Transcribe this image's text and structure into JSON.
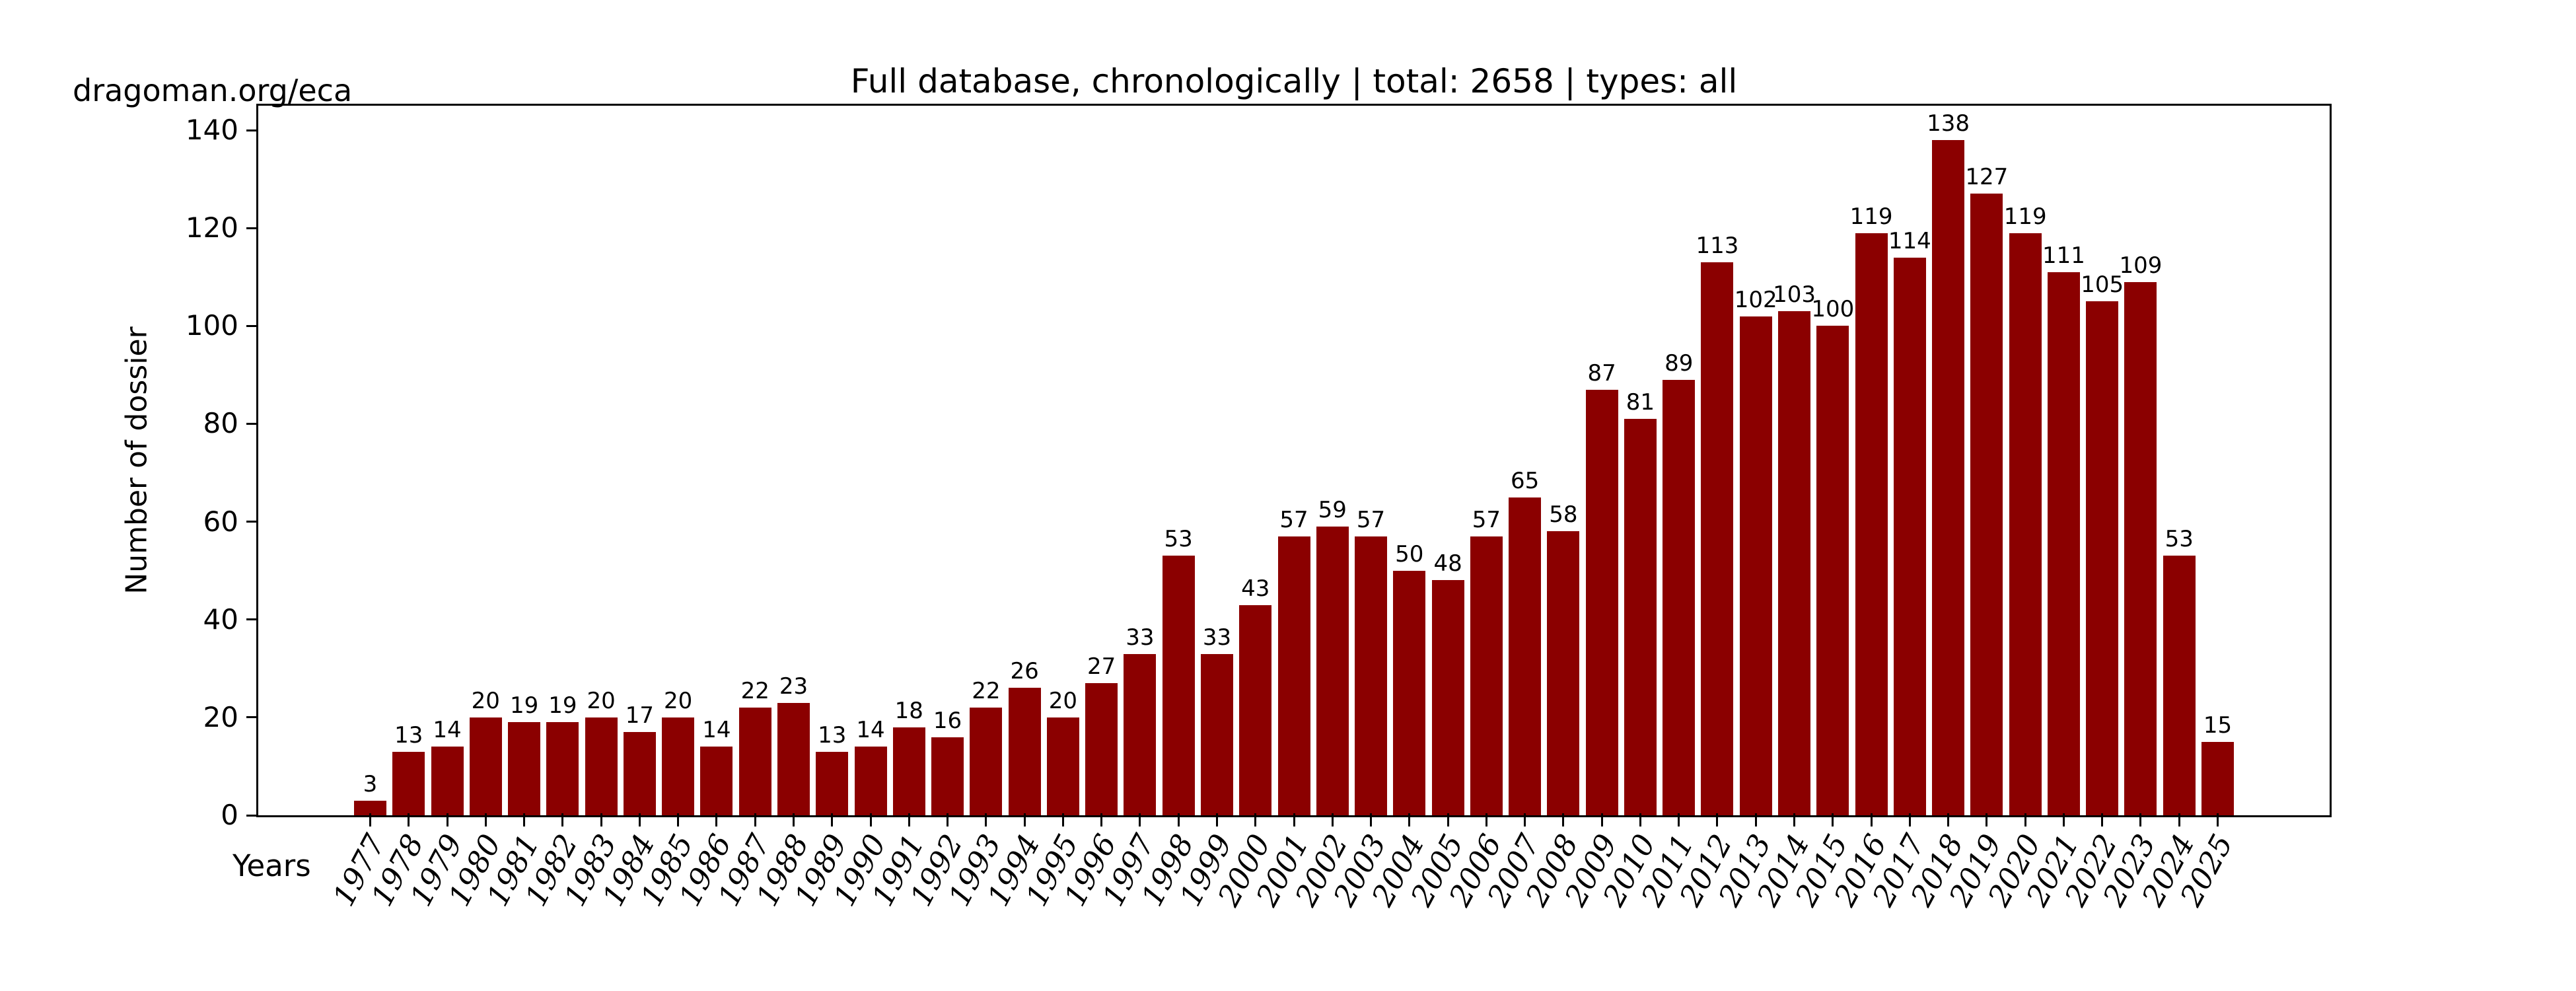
{
  "page": {
    "watermark": "dragoman.org/eca",
    "background_color": "#ffffff"
  },
  "chart_data": {
    "type": "bar",
    "title": "Full database, chronologically | total: 2658 | types: all",
    "xlabel": "Years",
    "ylabel": "Number of dossier",
    "total": 2658,
    "bar_color": "#8B0000",
    "axis_color": "#000000",
    "text_color": "#000000",
    "grid": false,
    "legend": null,
    "ylim": [
      0,
      145
    ],
    "yticks": [
      0,
      20,
      40,
      60,
      80,
      100,
      120,
      140
    ],
    "categories": [
      "1977",
      "1978",
      "1979",
      "1980",
      "1981",
      "1982",
      "1983",
      "1984",
      "1985",
      "1986",
      "1987",
      "1988",
      "1989",
      "1990",
      "1991",
      "1992",
      "1993",
      "1994",
      "1995",
      "1996",
      "1997",
      "1998",
      "1999",
      "2000",
      "2001",
      "2002",
      "2003",
      "2004",
      "2005",
      "2006",
      "2007",
      "2008",
      "2009",
      "2010",
      "2011",
      "2012",
      "2013",
      "2014",
      "2015",
      "2016",
      "2017",
      "2018",
      "2019",
      "2020",
      "2021",
      "2022",
      "2023",
      "2024",
      "2025"
    ],
    "values": [
      3,
      13,
      14,
      20,
      19,
      19,
      20,
      17,
      20,
      14,
      22,
      23,
      13,
      14,
      18,
      16,
      22,
      26,
      20,
      27,
      33,
      53,
      33,
      43,
      57,
      59,
      57,
      50,
      48,
      57,
      65,
      58,
      87,
      81,
      89,
      113,
      102,
      103,
      100,
      119,
      114,
      138,
      127,
      119,
      111,
      105,
      109,
      53,
      15
    ]
  }
}
